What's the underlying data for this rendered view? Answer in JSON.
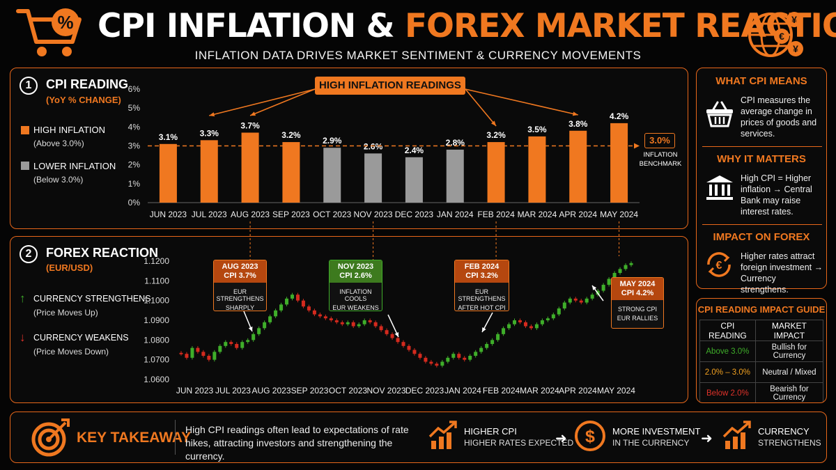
{
  "header": {
    "title_white": "CPI INFLATION & ",
    "title_orange": "FOREX MARKET REACTION",
    "subtitle": "INFLATION DATA DRIVES MARKET SENTIMENT & CURRENCY MOVEMENTS"
  },
  "colors": {
    "accent": "#f07820",
    "gray": "#9a9a9a",
    "bull": "#3fae2a",
    "bear": "#d42a1e",
    "neutral": "#f0a020"
  },
  "cpi_section": {
    "number": "1",
    "title": "CPI READING",
    "subtitle": "(YoY % CHANGE)",
    "legend": [
      {
        "label": "HIGH INFLATION",
        "sub": "(Above 3.0%)",
        "color": "#f07820"
      },
      {
        "label": "LOWER INFLATION",
        "sub": "(Below 3.0%)",
        "color": "#9a9a9a"
      }
    ],
    "callout": "HIGH INFLATION READINGS",
    "benchmark_value": "3.0%",
    "benchmark_label_1": "INFLATION",
    "benchmark_label_2": "BENCHMARK"
  },
  "forex_section": {
    "number": "2",
    "title": "FOREX REACTION",
    "subtitle": "(EUR/USD)",
    "legend": [
      {
        "label": "CURRENCY STRENGTHENS",
        "sub": "(Price Moves Up)"
      },
      {
        "label": "CURRENCY WEAKENS",
        "sub": "(Price Moves Down)"
      }
    ],
    "annotations": [
      {
        "head1": "AUG 2023",
        "head2": "CPI 3.7%",
        "body1": "EUR STRENGTHENS",
        "body2": "SHARPLY",
        "bg": "#b5470f"
      },
      {
        "head1": "NOV 2023",
        "head2": "CPI 2.6%",
        "body1": "INFLATION COOLS",
        "body2": "EUR WEAKENS",
        "bg": "#3d7a1e"
      },
      {
        "head1": "FEB 2024",
        "head2": "CPI 3.2%",
        "body1": "EUR STRENGTHENS",
        "body2": "AFTER HOT CPI",
        "bg": "#b5470f"
      },
      {
        "head1": "MAY 2024",
        "head2": "CPI 4.2%",
        "body1": "STRONG CPI",
        "body2": "EUR RALLIES",
        "bg": "#b5470f"
      }
    ]
  },
  "chart_data": [
    {
      "type": "bar",
      "title": "CPI READING",
      "subtitle": "(YoY % CHANGE)",
      "categories": [
        "JUN 2023",
        "JUL 2023",
        "AUG 2023",
        "SEP 2023",
        "OCT 2023",
        "NOV 2023",
        "DEC 2023",
        "JAN 2024",
        "FEB 2024",
        "MAR 2024",
        "APR 2024",
        "MAY 2024"
      ],
      "values": [
        3.1,
        3.3,
        3.7,
        3.2,
        2.9,
        2.6,
        2.4,
        2.8,
        3.2,
        3.5,
        3.8,
        4.2
      ],
      "value_labels": [
        "3.1%",
        "3.3%",
        "3.7%",
        "3.2%",
        "2.9%",
        "2.6%",
        "2.4%",
        "2.8%",
        "3.2%",
        "3.5%",
        "3.8%",
        "4.2%"
      ],
      "yticks": [
        "0%",
        "1%",
        "2%",
        "3%",
        "4%",
        "5%",
        "6%"
      ],
      "ylim": [
        0,
        6
      ],
      "benchmark": 3.0
    },
    {
      "type": "candlestick",
      "title": "FOREX REACTION",
      "subtitle": "(EUR/USD)",
      "categories": [
        "JUN 2023",
        "JUL 2023",
        "AUG 2023",
        "SEP 2023",
        "OCT 2023",
        "NOV 2023",
        "DEC 2023",
        "JAN 2024",
        "FEB 2024",
        "MAR 2024",
        "APR 2024",
        "MAY 2024"
      ],
      "ytick_labels": [
        "1.1200",
        "1.1100",
        "1.1000",
        "1.0900",
        "1.0800",
        "1.0700",
        "1.0600"
      ],
      "ylim": [
        1.06,
        1.12
      ],
      "close_path": [
        1.073,
        1.071,
        1.076,
        1.074,
        1.072,
        1.07,
        1.074,
        1.077,
        1.079,
        1.078,
        1.076,
        1.079,
        1.08,
        1.083,
        1.086,
        1.089,
        1.092,
        1.095,
        1.098,
        1.101,
        1.103,
        1.1,
        1.097,
        1.095,
        1.093,
        1.092,
        1.091,
        1.09,
        1.089,
        1.088,
        1.089,
        1.087,
        1.088,
        1.09,
        1.089,
        1.087,
        1.085,
        1.083,
        1.081,
        1.079,
        1.077,
        1.075,
        1.073,
        1.071,
        1.069,
        1.068,
        1.067,
        1.069,
        1.071,
        1.073,
        1.071,
        1.07,
        1.072,
        1.074,
        1.076,
        1.078,
        1.08,
        1.083,
        1.086,
        1.088,
        1.09,
        1.089,
        1.087,
        1.086,
        1.088,
        1.09,
        1.091,
        1.093,
        1.096,
        1.099,
        1.101,
        1.1,
        1.099,
        1.101,
        1.103,
        1.105,
        1.108,
        1.111,
        1.114,
        1.116,
        1.118,
        1.119
      ]
    }
  ],
  "sidebar": {
    "what_title": "WHAT CPI MEANS",
    "what_text": "CPI measures the average change in prices of goods and services.",
    "why_title": "WHY IT MATTERS",
    "why_text": "High CPI = Higher inflation → Central Bank may raise interest rates.",
    "impact_title": "IMPACT ON FOREX",
    "impact_text": "Higher rates attract foreign investment → Currency strengthens.",
    "guide_title": "CPI READING IMPACT GUIDE",
    "guide_head_1": "CPI READING",
    "guide_head_2": "MARKET IMPACT",
    "guide_rows": [
      {
        "reading": "Above 3.0%",
        "impact": "Bullish for Currency",
        "color": "#3fae2a"
      },
      {
        "reading": "2.0% – 3.0%",
        "impact": "Neutral / Mixed",
        "color": "#f0a020"
      },
      {
        "reading": "Below 2.0%",
        "impact": "Bearish for Currency",
        "color": "#e0322a"
      }
    ]
  },
  "footer": {
    "key_label": "KEY TAKEAWAY",
    "key_text": "High CPI readings often lead to expectations of rate hikes, attracting investors and strengthening the currency.",
    "step1_1": "HIGHER CPI",
    "step1_2": "HIGHER RATES EXPECTED",
    "step2_1": "MORE INVESTMENT",
    "step2_2": "IN THE CURRENCY",
    "step3_1": "CURRENCY",
    "step3_2": "STRENGTHENS",
    "arrow": "➜"
  }
}
